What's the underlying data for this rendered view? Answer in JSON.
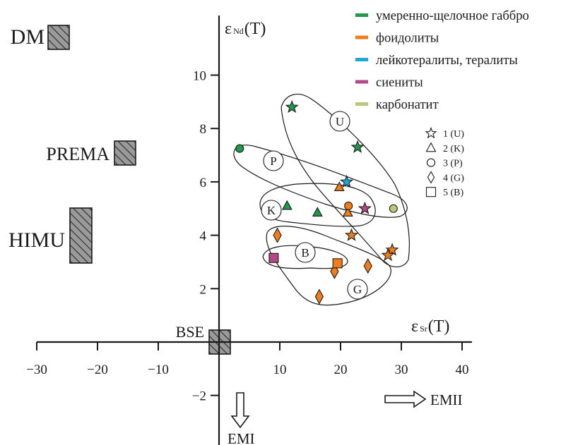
{
  "chart_data": {
    "type": "scatter",
    "title": "",
    "xlabel": "ε Sr(T)",
    "ylabel": "ε Nd(T)",
    "xlabel_parts": {
      "symbol": "ε",
      "sub": "Sr",
      "arg": "(T)"
    },
    "ylabel_parts": {
      "symbol": "ε",
      "sub": "Nd",
      "arg": "(T)"
    },
    "xlim": [
      -30,
      40
    ],
    "ylim": [
      -2,
      10
    ],
    "x_ticks": [
      -30,
      -20,
      -10,
      10,
      20,
      30,
      40
    ],
    "x_tick_labels": [
      "−30",
      "−20",
      "−10",
      "10",
      "20",
      "30",
      "40"
    ],
    "y_ticks": [
      -2,
      2,
      4,
      6,
      8,
      10
    ],
    "y_tick_labels": [
      "−2",
      "2",
      "4",
      "6",
      "8",
      "10"
    ],
    "grid": false,
    "legend_colors": {
      "position": "top-right",
      "entries": [
        {
          "name": "умеренно-щелочное габбро",
          "color": "#1e9a4b"
        },
        {
          "name": "фоидолиты",
          "color": "#ee7d1a"
        },
        {
          "name": "лейкотералиты, тералиты",
          "color": "#1ea6df"
        },
        {
          "name": "сиениты",
          "color": "#b3478a"
        },
        {
          "name": "карбонатит",
          "color": "#b9c97a"
        }
      ]
    },
    "legend_shapes": {
      "position": "right",
      "entries": [
        {
          "marker": "star",
          "label": "1 (U)"
        },
        {
          "marker": "triangle",
          "label": "2 (K)"
        },
        {
          "marker": "circle",
          "label": "3 (P)"
        },
        {
          "marker": "diamond",
          "label": "4 (G)"
        },
        {
          "marker": "square",
          "label": "5 (B)"
        }
      ]
    },
    "series": [
      {
        "marker": "star",
        "points": [
          {
            "x": 12,
            "y": 8.8,
            "color": "#1e9a4b"
          },
          {
            "x": 22.8,
            "y": 7.3,
            "color": "#1e9a4b"
          },
          {
            "x": 21,
            "y": 6.0,
            "color": "#1ea6df"
          },
          {
            "x": 24,
            "y": 5.0,
            "color": "#b3478a"
          },
          {
            "x": 21.8,
            "y": 4.0,
            "color": "#ee7d1a"
          },
          {
            "x": 28.5,
            "y": 3.45,
            "color": "#ee7d1a"
          },
          {
            "x": 27.8,
            "y": 3.25,
            "color": "#ee7d1a"
          }
        ]
      },
      {
        "marker": "triangle",
        "points": [
          {
            "x": 19.8,
            "y": 5.8,
            "color": "#ee7d1a"
          },
          {
            "x": 21.2,
            "y": 4.85,
            "color": "#ee7d1a"
          },
          {
            "x": 16.2,
            "y": 4.85,
            "color": "#1e9a4b"
          },
          {
            "x": 11.2,
            "y": 5.1,
            "color": "#1e9a4b"
          }
        ]
      },
      {
        "marker": "circle",
        "points": [
          {
            "x": 3.4,
            "y": 7.25,
            "color": "#1e9a4b"
          },
          {
            "x": 21.3,
            "y": 5.1,
            "color": "#ee7d1a"
          },
          {
            "x": 28.7,
            "y": 5.0,
            "color": "#b9c97a"
          }
        ]
      },
      {
        "marker": "diamond",
        "points": [
          {
            "x": 9.6,
            "y": 4.0,
            "color": "#ee7d1a"
          },
          {
            "x": 19.0,
            "y": 2.65,
            "color": "#ee7d1a"
          },
          {
            "x": 24.5,
            "y": 2.85,
            "color": "#ee7d1a"
          },
          {
            "x": 16.5,
            "y": 1.7,
            "color": "#ee7d1a"
          }
        ]
      },
      {
        "marker": "square",
        "points": [
          {
            "x": 9.0,
            "y": 3.15,
            "color": "#b3478a"
          },
          {
            "x": 19.5,
            "y": 2.95,
            "color": "#ee7d1a"
          }
        ]
      }
    ],
    "groups": [
      {
        "label": "U"
      },
      {
        "label": "P"
      },
      {
        "label": "K"
      },
      {
        "label": "B"
      },
      {
        "label": "G"
      }
    ],
    "mantle_reservoirs": [
      {
        "label": "DM"
      },
      {
        "label": "PREMA"
      },
      {
        "label": "HIMU"
      },
      {
        "label": "BSE"
      }
    ],
    "annotations": [
      {
        "label": "EMI",
        "direction": "down"
      },
      {
        "label": "EMII",
        "direction": "right"
      }
    ]
  }
}
